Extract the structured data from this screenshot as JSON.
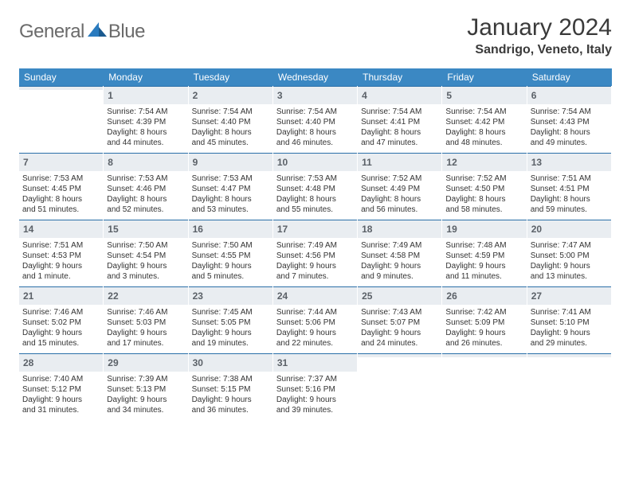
{
  "brand": {
    "word1": "General",
    "word2": "Blue"
  },
  "title": "January 2024",
  "location": "Sandrigo, Veneto, Italy",
  "colors": {
    "header_bg": "#3b88c3",
    "header_text": "#ffffff",
    "daynum_bg": "#e9edf1",
    "daynum_border": "#2a6fa8",
    "daynum_text": "#5b6168",
    "body_text": "#333333",
    "logo_gray": "#6b6b6b",
    "logo_blue": "#2a7bbf"
  },
  "typography": {
    "title_fontsize": 30,
    "location_fontsize": 16,
    "dow_fontsize": 12,
    "daynum_fontsize": 12,
    "detail_fontsize": 10
  },
  "dow": [
    "Sunday",
    "Monday",
    "Tuesday",
    "Wednesday",
    "Thursday",
    "Friday",
    "Saturday"
  ],
  "weeks": [
    [
      {
        "n": "",
        "lines": [
          "",
          "",
          "",
          ""
        ]
      },
      {
        "n": "1",
        "lines": [
          "Sunrise: 7:54 AM",
          "Sunset: 4:39 PM",
          "Daylight: 8 hours",
          "and 44 minutes."
        ]
      },
      {
        "n": "2",
        "lines": [
          "Sunrise: 7:54 AM",
          "Sunset: 4:40 PM",
          "Daylight: 8 hours",
          "and 45 minutes."
        ]
      },
      {
        "n": "3",
        "lines": [
          "Sunrise: 7:54 AM",
          "Sunset: 4:40 PM",
          "Daylight: 8 hours",
          "and 46 minutes."
        ]
      },
      {
        "n": "4",
        "lines": [
          "Sunrise: 7:54 AM",
          "Sunset: 4:41 PM",
          "Daylight: 8 hours",
          "and 47 minutes."
        ]
      },
      {
        "n": "5",
        "lines": [
          "Sunrise: 7:54 AM",
          "Sunset: 4:42 PM",
          "Daylight: 8 hours",
          "and 48 minutes."
        ]
      },
      {
        "n": "6",
        "lines": [
          "Sunrise: 7:54 AM",
          "Sunset: 4:43 PM",
          "Daylight: 8 hours",
          "and 49 minutes."
        ]
      }
    ],
    [
      {
        "n": "7",
        "lines": [
          "Sunrise: 7:53 AM",
          "Sunset: 4:45 PM",
          "Daylight: 8 hours",
          "and 51 minutes."
        ]
      },
      {
        "n": "8",
        "lines": [
          "Sunrise: 7:53 AM",
          "Sunset: 4:46 PM",
          "Daylight: 8 hours",
          "and 52 minutes."
        ]
      },
      {
        "n": "9",
        "lines": [
          "Sunrise: 7:53 AM",
          "Sunset: 4:47 PM",
          "Daylight: 8 hours",
          "and 53 minutes."
        ]
      },
      {
        "n": "10",
        "lines": [
          "Sunrise: 7:53 AM",
          "Sunset: 4:48 PM",
          "Daylight: 8 hours",
          "and 55 minutes."
        ]
      },
      {
        "n": "11",
        "lines": [
          "Sunrise: 7:52 AM",
          "Sunset: 4:49 PM",
          "Daylight: 8 hours",
          "and 56 minutes."
        ]
      },
      {
        "n": "12",
        "lines": [
          "Sunrise: 7:52 AM",
          "Sunset: 4:50 PM",
          "Daylight: 8 hours",
          "and 58 minutes."
        ]
      },
      {
        "n": "13",
        "lines": [
          "Sunrise: 7:51 AM",
          "Sunset: 4:51 PM",
          "Daylight: 8 hours",
          "and 59 minutes."
        ]
      }
    ],
    [
      {
        "n": "14",
        "lines": [
          "Sunrise: 7:51 AM",
          "Sunset: 4:53 PM",
          "Daylight: 9 hours",
          "and 1 minute."
        ]
      },
      {
        "n": "15",
        "lines": [
          "Sunrise: 7:50 AM",
          "Sunset: 4:54 PM",
          "Daylight: 9 hours",
          "and 3 minutes."
        ]
      },
      {
        "n": "16",
        "lines": [
          "Sunrise: 7:50 AM",
          "Sunset: 4:55 PM",
          "Daylight: 9 hours",
          "and 5 minutes."
        ]
      },
      {
        "n": "17",
        "lines": [
          "Sunrise: 7:49 AM",
          "Sunset: 4:56 PM",
          "Daylight: 9 hours",
          "and 7 minutes."
        ]
      },
      {
        "n": "18",
        "lines": [
          "Sunrise: 7:49 AM",
          "Sunset: 4:58 PM",
          "Daylight: 9 hours",
          "and 9 minutes."
        ]
      },
      {
        "n": "19",
        "lines": [
          "Sunrise: 7:48 AM",
          "Sunset: 4:59 PM",
          "Daylight: 9 hours",
          "and 11 minutes."
        ]
      },
      {
        "n": "20",
        "lines": [
          "Sunrise: 7:47 AM",
          "Sunset: 5:00 PM",
          "Daylight: 9 hours",
          "and 13 minutes."
        ]
      }
    ],
    [
      {
        "n": "21",
        "lines": [
          "Sunrise: 7:46 AM",
          "Sunset: 5:02 PM",
          "Daylight: 9 hours",
          "and 15 minutes."
        ]
      },
      {
        "n": "22",
        "lines": [
          "Sunrise: 7:46 AM",
          "Sunset: 5:03 PM",
          "Daylight: 9 hours",
          "and 17 minutes."
        ]
      },
      {
        "n": "23",
        "lines": [
          "Sunrise: 7:45 AM",
          "Sunset: 5:05 PM",
          "Daylight: 9 hours",
          "and 19 minutes."
        ]
      },
      {
        "n": "24",
        "lines": [
          "Sunrise: 7:44 AM",
          "Sunset: 5:06 PM",
          "Daylight: 9 hours",
          "and 22 minutes."
        ]
      },
      {
        "n": "25",
        "lines": [
          "Sunrise: 7:43 AM",
          "Sunset: 5:07 PM",
          "Daylight: 9 hours",
          "and 24 minutes."
        ]
      },
      {
        "n": "26",
        "lines": [
          "Sunrise: 7:42 AM",
          "Sunset: 5:09 PM",
          "Daylight: 9 hours",
          "and 26 minutes."
        ]
      },
      {
        "n": "27",
        "lines": [
          "Sunrise: 7:41 AM",
          "Sunset: 5:10 PM",
          "Daylight: 9 hours",
          "and 29 minutes."
        ]
      }
    ],
    [
      {
        "n": "28",
        "lines": [
          "Sunrise: 7:40 AM",
          "Sunset: 5:12 PM",
          "Daylight: 9 hours",
          "and 31 minutes."
        ]
      },
      {
        "n": "29",
        "lines": [
          "Sunrise: 7:39 AM",
          "Sunset: 5:13 PM",
          "Daylight: 9 hours",
          "and 34 minutes."
        ]
      },
      {
        "n": "30",
        "lines": [
          "Sunrise: 7:38 AM",
          "Sunset: 5:15 PM",
          "Daylight: 9 hours",
          "and 36 minutes."
        ]
      },
      {
        "n": "31",
        "lines": [
          "Sunrise: 7:37 AM",
          "Sunset: 5:16 PM",
          "Daylight: 9 hours",
          "and 39 minutes."
        ]
      },
      {
        "n": "",
        "lines": [
          "",
          "",
          "",
          ""
        ]
      },
      {
        "n": "",
        "lines": [
          "",
          "",
          "",
          ""
        ]
      },
      {
        "n": "",
        "lines": [
          "",
          "",
          "",
          ""
        ]
      }
    ]
  ]
}
